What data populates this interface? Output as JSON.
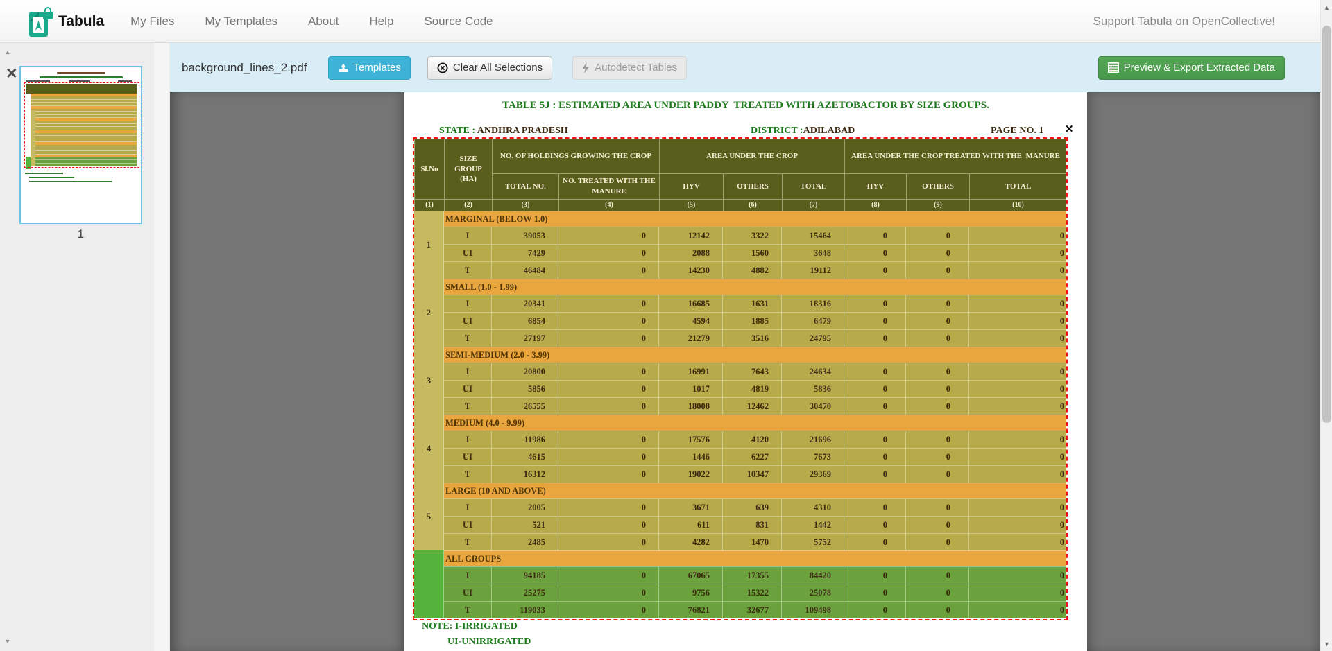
{
  "navbar": {
    "brand": "Tabula",
    "items": [
      "My Files",
      "My Templates",
      "About",
      "Help",
      "Source Code"
    ],
    "support": "Support Tabula on OpenCollective!"
  },
  "toolbar": {
    "filename": "background_lines_2.pdf",
    "templates": "Templates",
    "clear": "Clear All Selections",
    "autodetect": "Autodetect Tables",
    "export": "Preview & Export Extracted Data"
  },
  "sidebar": {
    "page_number": "1"
  },
  "icons": {
    "close": "✕",
    "up_arrow": "▲",
    "down_arrow": "▼"
  },
  "pdf": {
    "title": "TABLE 5J : ESTIMATED AREA UNDER PADDY  TREATED WITH AZETOBACTOR BY SIZE GROUPS.",
    "state_label": "STATE :",
    "state_value": "ANDHRA PRADESH",
    "district_label": "DISTRICT :",
    "district_value": "ADILABAD",
    "page_label": "PAGE NO. 1",
    "note_line1": "NOTE: I-IRRIGATED",
    "note_line2": "UI-UNIRRIGATED"
  },
  "table": {
    "headers": {
      "slno": "Sl.No",
      "size_group": "SIZE GROUP (HA)",
      "holdings_group": "NO. OF HOLDINGS GROWING THE CROP",
      "holdings_subs": [
        "TOTAL NO.",
        "NO. TREATED WITH THE  MANURE"
      ],
      "area_group": "AREA UNDER THE CROP",
      "area_subs": [
        "HYV",
        "OTHERS",
        "TOTAL"
      ],
      "treated_group": "AREA UNDER THE CROP TREATED WITH THE  MANURE",
      "treated_subs": [
        "HYV",
        "OTHERS",
        "TOTAL"
      ],
      "col_numbers": [
        "(1)",
        "(2)",
        "(3)",
        "(4)",
        "(5)",
        "(6)",
        "(7)",
        "(8)",
        "(9)",
        "(10)"
      ]
    },
    "sections": [
      {
        "slno": "1",
        "label": "MARGINAL (BELOW 1.0)",
        "all_groups": false,
        "rows": [
          [
            "I",
            39053,
            0,
            12142,
            3322,
            15464,
            0,
            0,
            0
          ],
          [
            "UI",
            7429,
            0,
            2088,
            1560,
            3648,
            0,
            0,
            0
          ],
          [
            "T",
            46484,
            0,
            14230,
            4882,
            19112,
            0,
            0,
            0
          ]
        ]
      },
      {
        "slno": "2",
        "label": "SMALL (1.0 - 1.99)",
        "all_groups": false,
        "rows": [
          [
            "I",
            20341,
            0,
            16685,
            1631,
            18316,
            0,
            0,
            0
          ],
          [
            "UI",
            6854,
            0,
            4594,
            1885,
            6479,
            0,
            0,
            0
          ],
          [
            "T",
            27197,
            0,
            21279,
            3516,
            24795,
            0,
            0,
            0
          ]
        ]
      },
      {
        "slno": "3",
        "label": "SEMI-MEDIUM (2.0 - 3.99)",
        "all_groups": false,
        "rows": [
          [
            "I",
            20800,
            0,
            16991,
            7643,
            24634,
            0,
            0,
            0
          ],
          [
            "UI",
            5856,
            0,
            1017,
            4819,
            5836,
            0,
            0,
            0
          ],
          [
            "T",
            26555,
            0,
            18008,
            12462,
            30470,
            0,
            0,
            0
          ]
        ]
      },
      {
        "slno": "4",
        "label": "MEDIUM (4.0 - 9.99)",
        "all_groups": false,
        "rows": [
          [
            "I",
            11986,
            0,
            17576,
            4120,
            21696,
            0,
            0,
            0
          ],
          [
            "UI",
            4615,
            0,
            1446,
            6227,
            7673,
            0,
            0,
            0
          ],
          [
            "T",
            16312,
            0,
            19022,
            10347,
            29369,
            0,
            0,
            0
          ]
        ]
      },
      {
        "slno": "5",
        "label": "LARGE (10 AND ABOVE)",
        "all_groups": false,
        "rows": [
          [
            "I",
            2005,
            0,
            3671,
            639,
            4310,
            0,
            0,
            0
          ],
          [
            "UI",
            521,
            0,
            611,
            831,
            1442,
            0,
            0,
            0
          ],
          [
            "T",
            2485,
            0,
            4282,
            1470,
            5752,
            0,
            0,
            0
          ]
        ]
      },
      {
        "slno": "",
        "label": "ALL GROUPS",
        "all_groups": true,
        "rows": [
          [
            "I",
            94185,
            0,
            67065,
            17355,
            84420,
            0,
            0,
            0
          ],
          [
            "UI",
            25275,
            0,
            9756,
            15322,
            25078,
            0,
            0,
            0
          ],
          [
            "T",
            119033,
            0,
            76821,
            32677,
            109498,
            0,
            0,
            0
          ]
        ]
      }
    ]
  },
  "colors": {
    "toolbar_bg": "#d9edf7",
    "templates_btn": "#3fb2d8",
    "export_btn": "#4d9e4d",
    "export_border": "#3d8b3d",
    "selection_red": "#f21313",
    "main_bg": "#757575",
    "sidebar_bg": "#ededed",
    "header_olive": "#5a5e1d",
    "band_orange": "#eaa63e",
    "row_olive": "#b6aa4a",
    "slno_olive": "#c6ba60",
    "row_green": "#6ba23e",
    "slno_green": "#55b33b",
    "text_brown": "#3b2a10",
    "header_text": "#f5efd5",
    "title_green": "#1e7b1e",
    "thumb_border": "#6cc1e2"
  }
}
